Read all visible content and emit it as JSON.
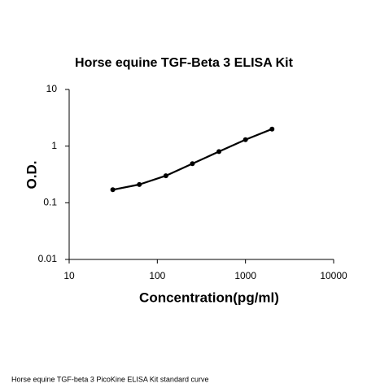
{
  "chart_data": {
    "type": "line",
    "title": "Horse equine TGF-Beta 3 ELISA Kit",
    "x_label": "Concentration(pg/ml)",
    "y_label": "O.D.",
    "x": [
      31.25,
      62.5,
      125,
      250,
      500,
      1000,
      2000
    ],
    "series": [
      {
        "color": "#000000",
        "values": [
          0.17,
          0.21,
          0.3,
          0.49,
          0.8,
          1.3,
          2.0
        ]
      }
    ],
    "xlim": [
      10,
      10000
    ],
    "xticks": [
      10,
      100,
      1000,
      10000
    ],
    "ylim": [
      0.01,
      10
    ],
    "yticks": [
      0.01,
      0.1,
      1,
      10
    ],
    "x_scale": "log",
    "y_scale": "log",
    "grid": false
  },
  "caption": "Horse equine TGF-beta 3 PicoKine ELISA Kit standard curve"
}
